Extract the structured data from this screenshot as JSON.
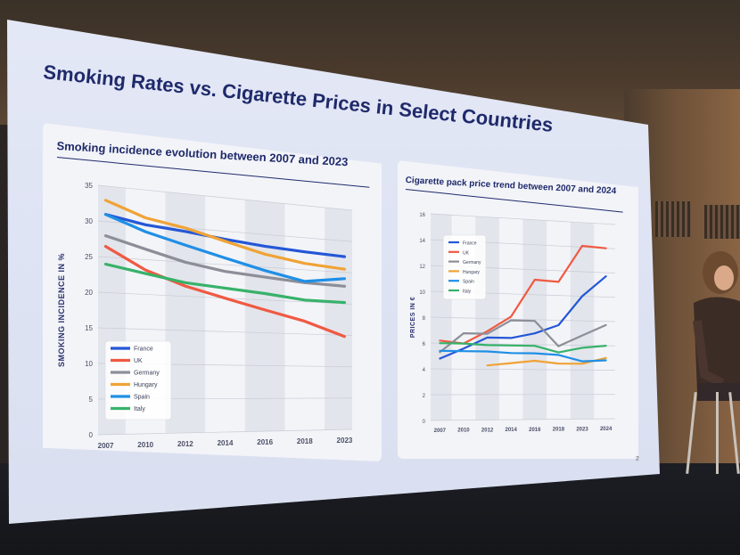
{
  "slide": {
    "title": "Smoking Rates vs. Cigarette Prices in Select Countries",
    "page_number": "2"
  },
  "colors": {
    "France": "#2457d6",
    "UK": "#ef5a42",
    "Germany": "#8c8e98",
    "Hungary": "#f0a336",
    "Spain": "#1f8fe6",
    "Italy": "#37b26a",
    "title": "#1f2a6b"
  },
  "chart_data": [
    {
      "type": "line",
      "title": "Smoking incidence evolution between 2007 and 2023",
      "xlabel": "",
      "ylabel": "SMOKING INCIDENCE IN %",
      "x": [
        "2007",
        "2010",
        "2012",
        "2014",
        "2016",
        "2018",
        "2023"
      ],
      "ylim": [
        0,
        35
      ],
      "yticks": [
        0,
        5,
        10,
        15,
        20,
        25,
        30,
        35
      ],
      "grid": true,
      "legend_position": "bottom-left",
      "series": [
        {
          "name": "France",
          "values": [
            31,
            30,
            29.5,
            28.8,
            28.2,
            27.8,
            27.5
          ]
        },
        {
          "name": "UK",
          "values": [
            26.5,
            23.5,
            21.5,
            20,
            18.5,
            17,
            14.8
          ]
        },
        {
          "name": "Germany",
          "values": [
            28,
            26.5,
            25,
            24,
            23.5,
            23,
            22.8
          ]
        },
        {
          "name": "Hungary",
          "values": [
            33,
            31,
            30,
            28.5,
            27,
            26,
            25.5
          ]
        },
        {
          "name": "Spain",
          "values": [
            31,
            29,
            27.5,
            26,
            24.5,
            23.2,
            24
          ]
        },
        {
          "name": "Italy",
          "values": [
            24,
            23,
            22,
            21.5,
            21,
            20.3,
            20.2
          ]
        }
      ]
    },
    {
      "type": "line",
      "title": "Cigarette pack price trend between 2007 and 2024",
      "xlabel": "",
      "ylabel": "PRICES IN €",
      "x": [
        "2007",
        "2010",
        "2012",
        "2014",
        "2016",
        "2018",
        "2023",
        "2024"
      ],
      "ylim": [
        0,
        16
      ],
      "yticks": [
        0,
        2,
        4,
        6,
        8,
        10,
        12,
        14,
        16
      ],
      "grid": true,
      "legend_position": "top-left",
      "series": [
        {
          "name": "France",
          "values": [
            4.8,
            5.6,
            6.5,
            6.5,
            6.9,
            7.6,
            10,
            11.7
          ]
        },
        {
          "name": "UK",
          "values": [
            6.2,
            6.0,
            7.0,
            8.2,
            11.2,
            11.1,
            14.1,
            14.0
          ]
        },
        {
          "name": "Germany",
          "values": [
            5.3,
            6.8,
            6.8,
            7.9,
            7.9,
            5.9,
            6.8,
            7.7
          ]
        },
        {
          "name": "Hungary",
          "values": [
            null,
            null,
            4.3,
            4.5,
            4.7,
            4.5,
            4.5,
            5.0
          ]
        },
        {
          "name": "Spain",
          "values": [
            5.4,
            5.4,
            5.4,
            5.3,
            5.3,
            5.2,
            4.7,
            4.8
          ]
        },
        {
          "name": "Italy",
          "values": [
            6.0,
            6.0,
            5.9,
            5.9,
            5.9,
            5.4,
            5.8,
            6.0
          ]
        }
      ]
    }
  ]
}
